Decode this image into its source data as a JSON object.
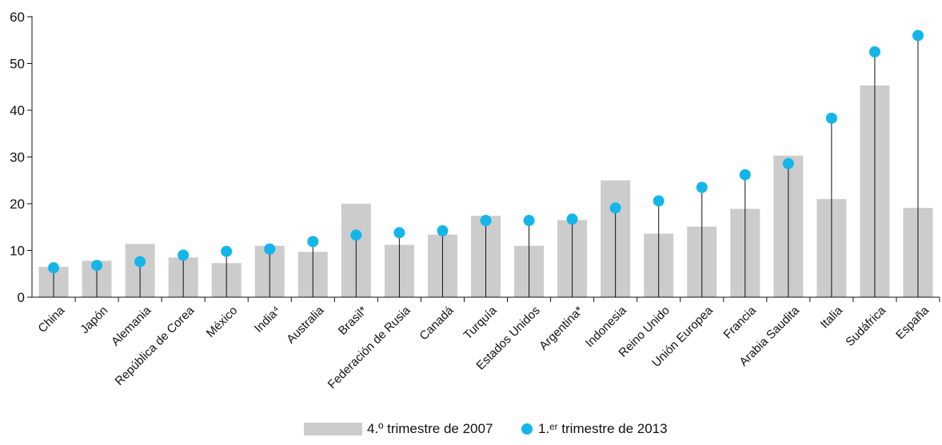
{
  "chart_data": {
    "type": "bar",
    "categories": [
      "China",
      "Japón",
      "Alemania",
      "República de Corea",
      "México",
      "India⁴",
      "Australia",
      "Brasil*",
      "Federación de Rusia",
      "Canadá",
      "Turquía",
      "Estados Unidos",
      "Argentina*",
      "Indonesia",
      "Reino Unido",
      "Unión Europea",
      "Francia",
      "Arabia Saudita",
      "Italia",
      "Sudáfrica",
      "España"
    ],
    "series": [
      {
        "name": "4.º trimestre de 2007",
        "kind": "bar",
        "color": "#cccccc",
        "values": [
          6.5,
          7.8,
          11.4,
          8.5,
          7.3,
          11.0,
          9.7,
          20.0,
          11.2,
          13.4,
          17.4,
          11.0,
          16.5,
          25.0,
          13.6,
          15.1,
          18.9,
          30.3,
          21.0,
          45.3,
          19.1
        ]
      },
      {
        "name": "1.ᵉʳ trimestre de 2013",
        "kind": "dot",
        "color": "#14b6ea",
        "values": [
          6.3,
          6.8,
          7.6,
          9.0,
          9.8,
          10.3,
          11.9,
          13.3,
          13.8,
          14.2,
          16.4,
          16.4,
          16.7,
          19.1,
          20.6,
          23.5,
          26.2,
          28.6,
          38.3,
          52.5,
          56.0
        ]
      }
    ],
    "ylim": [
      0,
      60
    ],
    "yticks": [
      0,
      10,
      20,
      30,
      40,
      50,
      60
    ],
    "grid": false,
    "legend_position": "bottom-center"
  },
  "legend": {
    "bar_label": "4.º trimestre de 2007",
    "dot_label": "1.ᵉʳ trimestre de 2013"
  },
  "colors": {
    "bar": "#cccccc",
    "dot": "#14b6ea",
    "axis": "#111111",
    "stem": "#111111"
  }
}
